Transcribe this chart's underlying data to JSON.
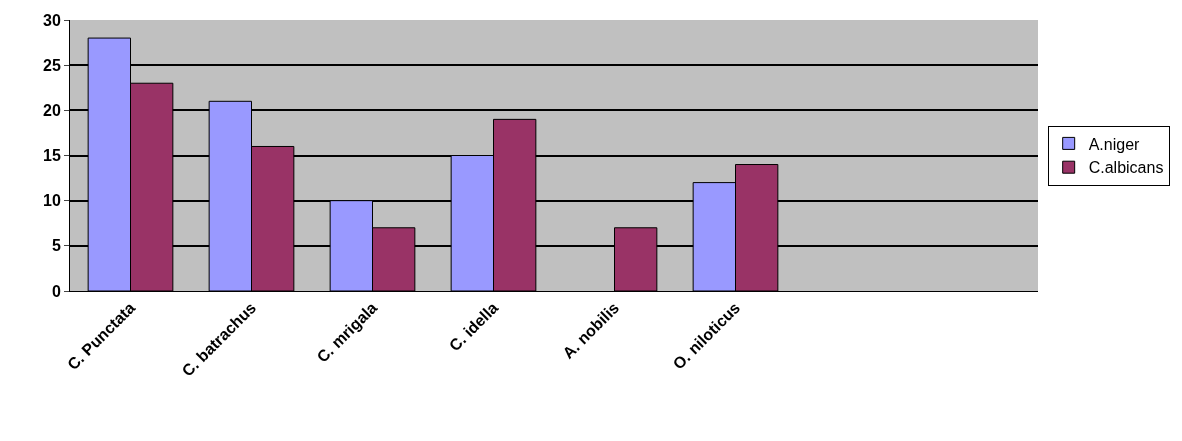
{
  "chart_data": {
    "type": "bar",
    "categories": [
      "C. Punctata",
      "C. batrachus",
      "C. mrigala",
      "C. idella",
      "A. nobilis",
      "O. niloticus",
      null,
      null
    ],
    "series": [
      {
        "name": "A.niger",
        "color": "#9999ff",
        "values": [
          28,
          21,
          10,
          15,
          null,
          12,
          null,
          null
        ]
      },
      {
        "name": "C.albicans",
        "color": "#993366",
        "values": [
          23,
          16,
          7,
          19,
          7,
          14,
          null,
          null
        ]
      }
    ],
    "ylim": [
      0,
      30
    ],
    "yticks": [
      0,
      5,
      10,
      15,
      20,
      25,
      30
    ],
    "grid": "y",
    "legend": "right"
  }
}
